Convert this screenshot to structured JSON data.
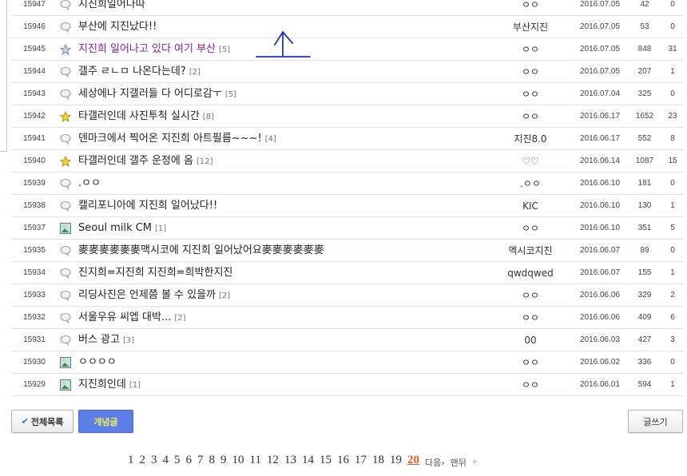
{
  "posts": [
    {
      "no": "15947",
      "icon": "speech-bubble",
      "title": "지진희일어나따",
      "count": "",
      "writer": "ㅇㅇ",
      "date": "2016.07.05",
      "views": "42",
      "recommends": "0"
    },
    {
      "no": "15946",
      "icon": "speech-bubble",
      "title": "부산에 지진났다!!",
      "count": "",
      "writer": "부산지진",
      "date": "2016.07.05",
      "views": "53",
      "recommends": "0"
    },
    {
      "no": "15945",
      "icon": "silver-star",
      "title": "지진희 일어나고 있다 여기 부산",
      "count": "[5]",
      "writer": "ㅇㅇ",
      "date": "2016.07.05",
      "views": "848",
      "recommends": "31",
      "visited": true
    },
    {
      "no": "15944",
      "icon": "speech-bubble",
      "title": "갤주 ㄹㄴㅁ 나온다는데?",
      "count": "[2]",
      "writer": "ㅇㅇ",
      "date": "2016.07.05",
      "views": "207",
      "recommends": "1"
    },
    {
      "no": "15943",
      "icon": "speech-bubble",
      "title": "세상에나 지갤러들 다 어디로감ㅜ",
      "count": "[5]",
      "writer": "ㅇㅇ",
      "date": "2016.07.04",
      "views": "325",
      "recommends": "0"
    },
    {
      "no": "15942",
      "icon": "gold-star",
      "title": "타갤러인데 사진투척 실시간",
      "count": "[8]",
      "writer": "ㅇㅇ",
      "date": "2016.06.17",
      "views": "1652",
      "recommends": "23"
    },
    {
      "no": "15941",
      "icon": "speech-bubble",
      "title": "덴마크에서 찍어온 지진희 아트필름~~~!",
      "count": "[4]",
      "writer": "지진8.0",
      "date": "2016.06.17",
      "views": "552",
      "recommends": "8"
    },
    {
      "no": "15940",
      "icon": "gold-star",
      "title": "타갤러인데 갤주 운정에 옴",
      "count": "[12]",
      "writer": "♡♡",
      "date": "2016.06.14",
      "views": "1087",
      "recommends": "15"
    },
    {
      "no": "15939",
      "icon": "speech-bubble",
      "title": ".ㅇㅇ",
      "count": "",
      "writer": ".ㅇㅇ",
      "date": "2016.06.10",
      "views": "181",
      "recommends": "0"
    },
    {
      "no": "15938",
      "icon": "speech-bubble",
      "title": "캘리포니아에 지진희 일어났다!!",
      "count": "",
      "writer": "KIC",
      "date": "2016.06.10",
      "views": "130",
      "recommends": "1"
    },
    {
      "no": "15937",
      "icon": "image",
      "title": "Seoul milk CM",
      "count": "[1]",
      "writer": "ㅇㅇ",
      "date": "2016.06.10",
      "views": "351",
      "recommends": "5"
    },
    {
      "no": "15935",
      "icon": "speech-bubble",
      "title": "麥麥麥麥麥麥맥시코에 지진희 일어났어요麥麥麥麥麥麥",
      "count": "",
      "writer": "멕시코지진",
      "date": "2016.06.07",
      "views": "89",
      "recommends": "0"
    },
    {
      "no": "15934",
      "icon": "speech-bubble",
      "title": "진지희=지진희 지진희=희박한지진",
      "count": "",
      "writer": "qwdqwed",
      "date": "2016.06.07",
      "views": "155",
      "recommends": "1"
    },
    {
      "no": "15933",
      "icon": "speech-bubble",
      "title": "리딩사진은 언제쯤 볼 수 있을까",
      "count": "[2]",
      "writer": "ㅇㅇ",
      "date": "2016.06.06",
      "views": "329",
      "recommends": "2"
    },
    {
      "no": "15932",
      "icon": "speech-bubble",
      "title": "서울우유 씨엡 대박...",
      "count": "[2]",
      "writer": "ㅇㅇ",
      "date": "2016.06.06",
      "views": "409",
      "recommends": "6"
    },
    {
      "no": "15931",
      "icon": "speech-bubble",
      "title": "버스 광고",
      "count": "[3]",
      "writer": "00",
      "date": "2016.06.03",
      "views": "427",
      "recommends": "3"
    },
    {
      "no": "15930",
      "icon": "image",
      "title": "ㅇㅇㅇㅇ",
      "count": "",
      "writer": "ㅇㅇ",
      "date": "2016.06.02",
      "views": "336",
      "recommends": "0"
    },
    {
      "no": "15929",
      "icon": "image",
      "title": "지진희인데",
      "count": "[1]",
      "writer": "ㅇㅇ",
      "date": "2016.06.01",
      "views": "594",
      "recommends": "1"
    }
  ],
  "buttons": {
    "all_list": "전체목록",
    "concept": "개념글",
    "write": "글쓰기"
  },
  "pagination": {
    "pages": [
      "1",
      "2",
      "3",
      "4",
      "5",
      "6",
      "7",
      "8",
      "9",
      "10",
      "11",
      "12",
      "13",
      "14",
      "15",
      "16",
      "17",
      "18",
      "19",
      "20"
    ],
    "current": "20",
    "next": "다음›",
    "last": "맨뒤",
    "last_arrow": "»"
  },
  "colors": {
    "concept_button": "#5b7fe6",
    "current_page": "#e05a22",
    "visited_title": "#8a1b9b",
    "annotation": "#2233bb"
  }
}
